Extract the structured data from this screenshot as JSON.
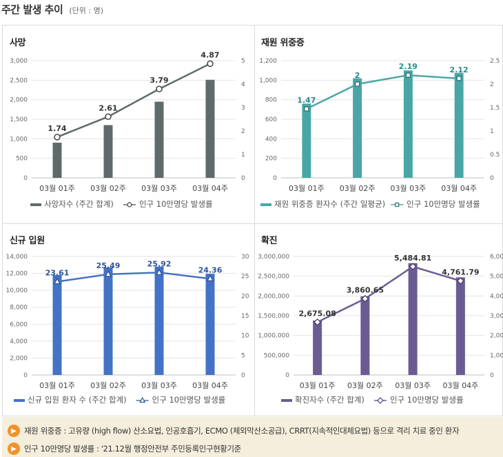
{
  "header": {
    "title": "주간 발생 추이",
    "unit": "(단위 : 명)"
  },
  "chart_data": [
    {
      "id": "deaths",
      "type": "bar",
      "title": "사망",
      "categories": [
        "03월 01주",
        "03월 02주",
        "03월 03주",
        "03월 04주"
      ],
      "series": [
        {
          "name": "사망자수 (주간 합계)",
          "type": "bar",
          "axis": "left",
          "values": [
            900,
            1350,
            1950,
            2510
          ]
        },
        {
          "name": "인구 10만명당 발생률",
          "type": "line",
          "axis": "right",
          "values": [
            1.74,
            2.61,
            3.79,
            4.87
          ]
        }
      ],
      "data_labels": [
        "1.74",
        "2.61",
        "3.79",
        "4.87"
      ],
      "y_left": {
        "min": 0,
        "max": 3000,
        "ticks": [
          "0",
          "500",
          "1,000",
          "1,500",
          "2,000",
          "2,500",
          "3,000"
        ]
      },
      "y_right": {
        "min": 0,
        "max": 5,
        "ticks": [
          "0",
          "1",
          "2",
          "3",
          "4",
          "5"
        ]
      },
      "colors": {
        "bar": "#5f6b6b",
        "line": "#5f6b6b",
        "label": "#333333"
      },
      "legend": [
        "사망자수 (주간 합계)",
        "인구 10만명당 발생률"
      ]
    },
    {
      "id": "severe",
      "type": "bar",
      "title": "재원 위중증",
      "categories": [
        "03월 01주",
        "03월 02주",
        "03월 03주",
        "03월 04주"
      ],
      "series": [
        {
          "name": "재원 위중증 환자수 (주간 일평균)",
          "type": "bar",
          "axis": "left",
          "values": [
            760,
            1020,
            1100,
            1075
          ]
        },
        {
          "name": "인구 10만명당 발생률",
          "type": "line",
          "axis": "right",
          "values": [
            1.47,
            2.0,
            2.19,
            2.12
          ]
        }
      ],
      "data_labels": [
        "1.47",
        "2",
        "2.19",
        "2.12"
      ],
      "y_left": {
        "min": 0,
        "max": 1200,
        "ticks": [
          "0",
          "200",
          "400",
          "600",
          "800",
          "1,000",
          "1,200"
        ]
      },
      "y_right": {
        "min": 0,
        "max": 2.5,
        "ticks": [
          "0",
          "0.5",
          "1",
          "1.5",
          "2",
          "2.5"
        ]
      },
      "colors": {
        "bar": "#4aa6a6",
        "line": "#4aa6a6",
        "label": "#2d8a8a"
      },
      "legend": [
        "재원 위중증 환자수 (주간 일평균)",
        "인구 10만명당 발생률"
      ]
    },
    {
      "id": "admission",
      "type": "bar",
      "title": "신규 입원",
      "categories": [
        "03월 01주",
        "03월 02주",
        "03월 03주",
        "03월 04주"
      ],
      "series": [
        {
          "name": "신규 입원 환자 수 (주간 합계)",
          "type": "bar",
          "axis": "left",
          "values": [
            11800,
            12700,
            12800,
            11950
          ]
        },
        {
          "name": "인구 10만명당 발생률",
          "type": "line",
          "axis": "right",
          "values": [
            23.61,
            25.49,
            25.92,
            24.36
          ]
        }
      ],
      "data_labels": [
        "23.61",
        "25.49",
        "25.92",
        "24.36"
      ],
      "y_left": {
        "min": 0,
        "max": 14000,
        "ticks": [
          "0",
          "2,000",
          "4,000",
          "6,000",
          "8,000",
          "10,000",
          "12,000",
          "14,000"
        ]
      },
      "y_right": {
        "min": 0,
        "max": 30,
        "ticks": [
          "0",
          "5",
          "10",
          "15",
          "20",
          "25",
          "30"
        ]
      },
      "colors": {
        "bar": "#4472c4",
        "line": "#4472c4",
        "label": "#2f5597"
      },
      "legend": [
        "신규 입원 환자 수 (주간 합계)",
        "인구 10만명당 발생률"
      ]
    },
    {
      "id": "confirmed",
      "type": "bar",
      "title": "확진",
      "categories": [
        "03월 01주",
        "03월 02주",
        "03월 03주",
        "03월 04주"
      ],
      "series": [
        {
          "name": "확진자수 (주간 합계)",
          "type": "bar",
          "axis": "left",
          "values": [
            1380000,
            1990000,
            2830000,
            2470000
          ]
        },
        {
          "name": "인구 10만명당 발생률",
          "type": "line",
          "axis": "right",
          "values": [
            2675.08,
            3860.65,
            5484.81,
            4761.79
          ]
        }
      ],
      "data_labels": [
        "2,675.08",
        "3,860.65",
        "5,484.81",
        "4,761.79"
      ],
      "y_left": {
        "min": 0,
        "max": 3000000,
        "ticks": [
          "0",
          "500,000",
          "1,000,000",
          "1,500,000",
          "2,000,000",
          "2,500,000",
          "3,000,000"
        ]
      },
      "y_right": {
        "min": 0,
        "max": 6000,
        "ticks": [
          "0",
          "1,000",
          "2,000",
          "3,000",
          "4,000",
          "5,000",
          "6,000"
        ]
      },
      "colors": {
        "bar": "#6b5b95",
        "line": "#6b5b95",
        "label": "#333333"
      },
      "legend": [
        "확진자수 (주간 합계)",
        "인구 10만명당 발생률"
      ]
    }
  ],
  "notes": [
    "재원 위중증 : 고유량 (high flow) 산소요법, 인공호흡기, ECMO (체외막산소공급), CRRT(지속적인대체요법) 등으로 격리 치료 중인 환자",
    "인구 10만명당 발생률 : '21.12월 행정안전부 주민등록인구현황기준"
  ]
}
